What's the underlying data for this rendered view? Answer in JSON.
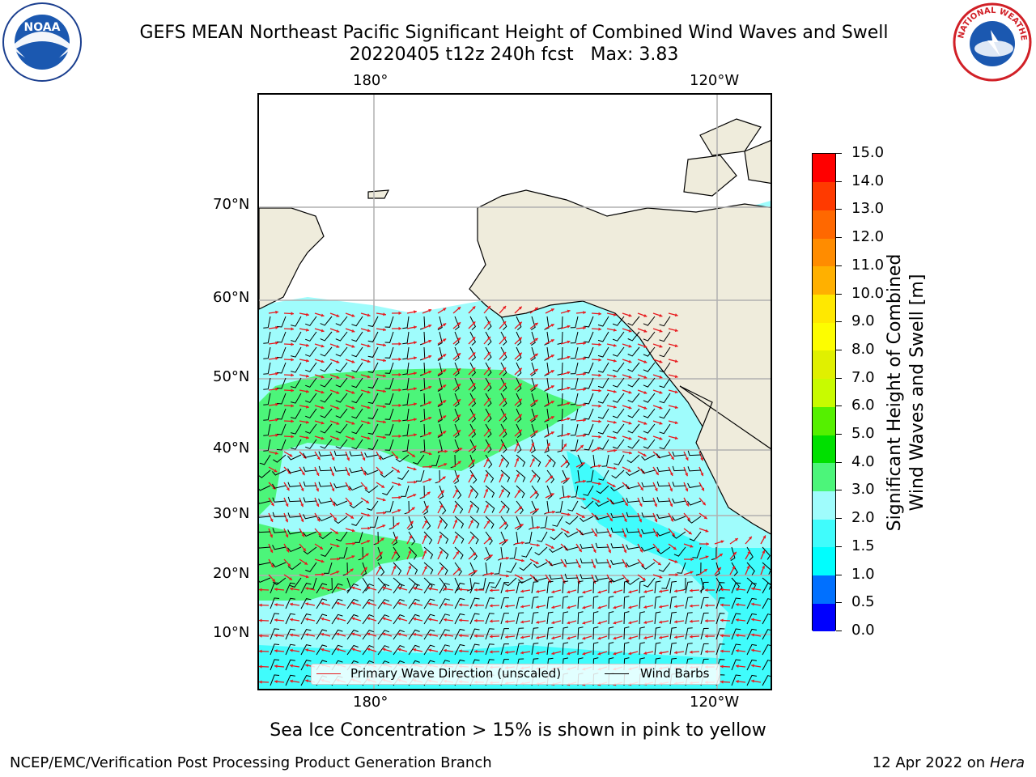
{
  "title": {
    "line1": "GEFS MEAN Northeast Pacific Significant Height of Combined Wind Waves and Swell",
    "line2": "20220405 t12z 240h fcst   Max: 3.83"
  },
  "logos": {
    "left": "NOAA",
    "right": "NATIONAL WEATHER SERVICE"
  },
  "map": {
    "top_lon_labels": [
      "180°",
      "120°W"
    ],
    "bottom_lon_labels": [
      "180°",
      "120°W"
    ],
    "lat_labels": [
      "70°N",
      "60°N",
      "50°N",
      "40°N",
      "30°N",
      "20°N",
      "10°N"
    ],
    "colors": {
      "land": "#efecdc",
      "ocean_2_3": "#9ffcfc",
      "ocean_15_2": "#40fcfc",
      "band_3_4": "#4cf57a",
      "ice": "#ffffff",
      "grid": "#b0b0b0",
      "arrow": "#e8191d",
      "barb": "#000000"
    }
  },
  "legend": {
    "wave_label": "Primary Wave Direction (unscaled)",
    "barb_label": "Wind Barbs",
    "wave_color": "#e8191d",
    "barb_color": "#000000"
  },
  "colorbar": {
    "label_line1": "Significant Height of Combined",
    "label_line2": "Wind Waves and Swell [m]",
    "ticks": [
      "0.0",
      "0.5",
      "1.0",
      "1.5",
      "2.0",
      "3.0",
      "4.0",
      "5.0",
      "6.0",
      "7.0",
      "8.0",
      "9.0",
      "10.0",
      "11.0",
      "12.0",
      "13.0",
      "14.0",
      "15.0"
    ],
    "colors": [
      "#0000fe",
      "#0070ff",
      "#00fefe",
      "#40fcfc",
      "#9ffcfc",
      "#4cf57a",
      "#00e000",
      "#55f000",
      "#c8fb00",
      "#e0f000",
      "#fdfd00",
      "#ffe800",
      "#ffb000",
      "#ff8c00",
      "#ff6800",
      "#ff3a00",
      "#ff0000"
    ]
  },
  "sea_ice_note": "Sea Ice Concentration > 15% is shown in pink to yellow",
  "footer": {
    "left": "NCEP/EMC/Verification Post Processing Product Generation Branch",
    "right_date": "12 Apr 2022 on ",
    "right_host": "Hera"
  }
}
